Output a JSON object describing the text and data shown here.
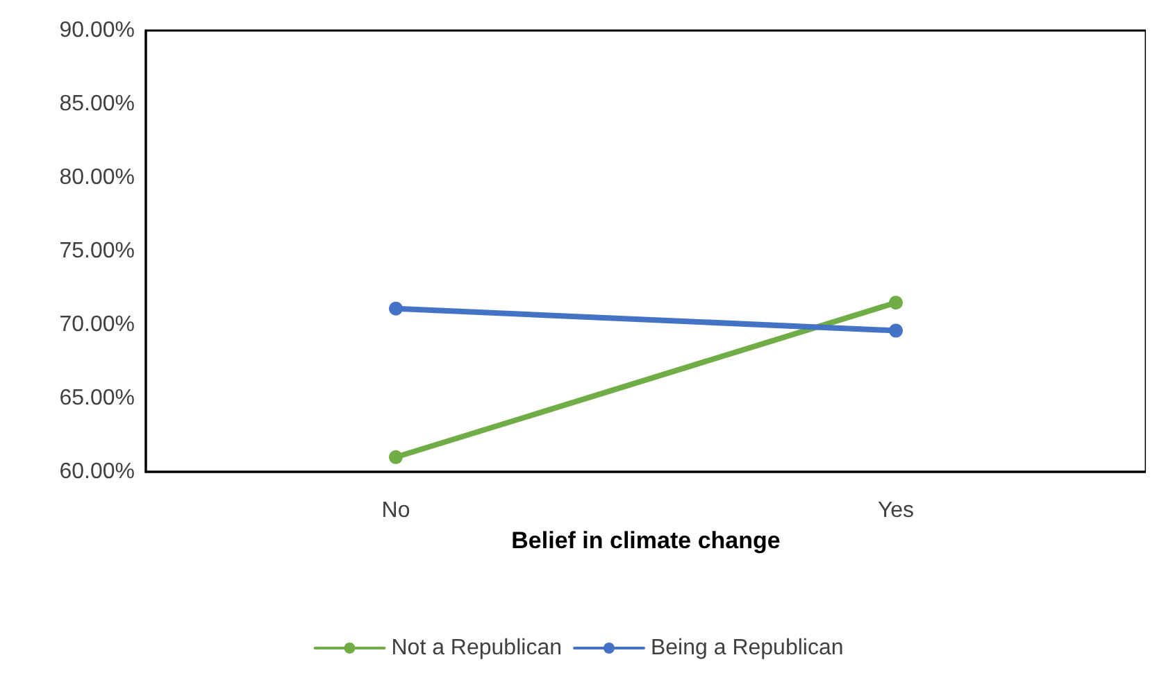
{
  "chart_data": {
    "type": "line",
    "xlabel": "Belief in climate change",
    "categories": [
      "No",
      "Yes"
    ],
    "series": [
      {
        "name": "Not a Republican",
        "color": "#70ad47",
        "values": [
          61.0,
          71.5
        ]
      },
      {
        "name": "Being a Republican",
        "color": "#4472c4",
        "values": [
          71.1,
          69.6
        ]
      }
    ],
    "ylim": [
      60,
      90
    ],
    "yticks": [
      {
        "value": 60,
        "label": "60.00%"
      },
      {
        "value": 65,
        "label": "65.00%"
      },
      {
        "value": 70,
        "label": "70.00%"
      },
      {
        "value": 75,
        "label": "75.00%"
      },
      {
        "value": 80,
        "label": "80.00%"
      },
      {
        "value": 85,
        "label": "85.00%"
      },
      {
        "value": 90,
        "label": "90.00%"
      }
    ],
    "grid": false,
    "legend": "bottom",
    "marker": "circle",
    "line_style": "solid"
  }
}
